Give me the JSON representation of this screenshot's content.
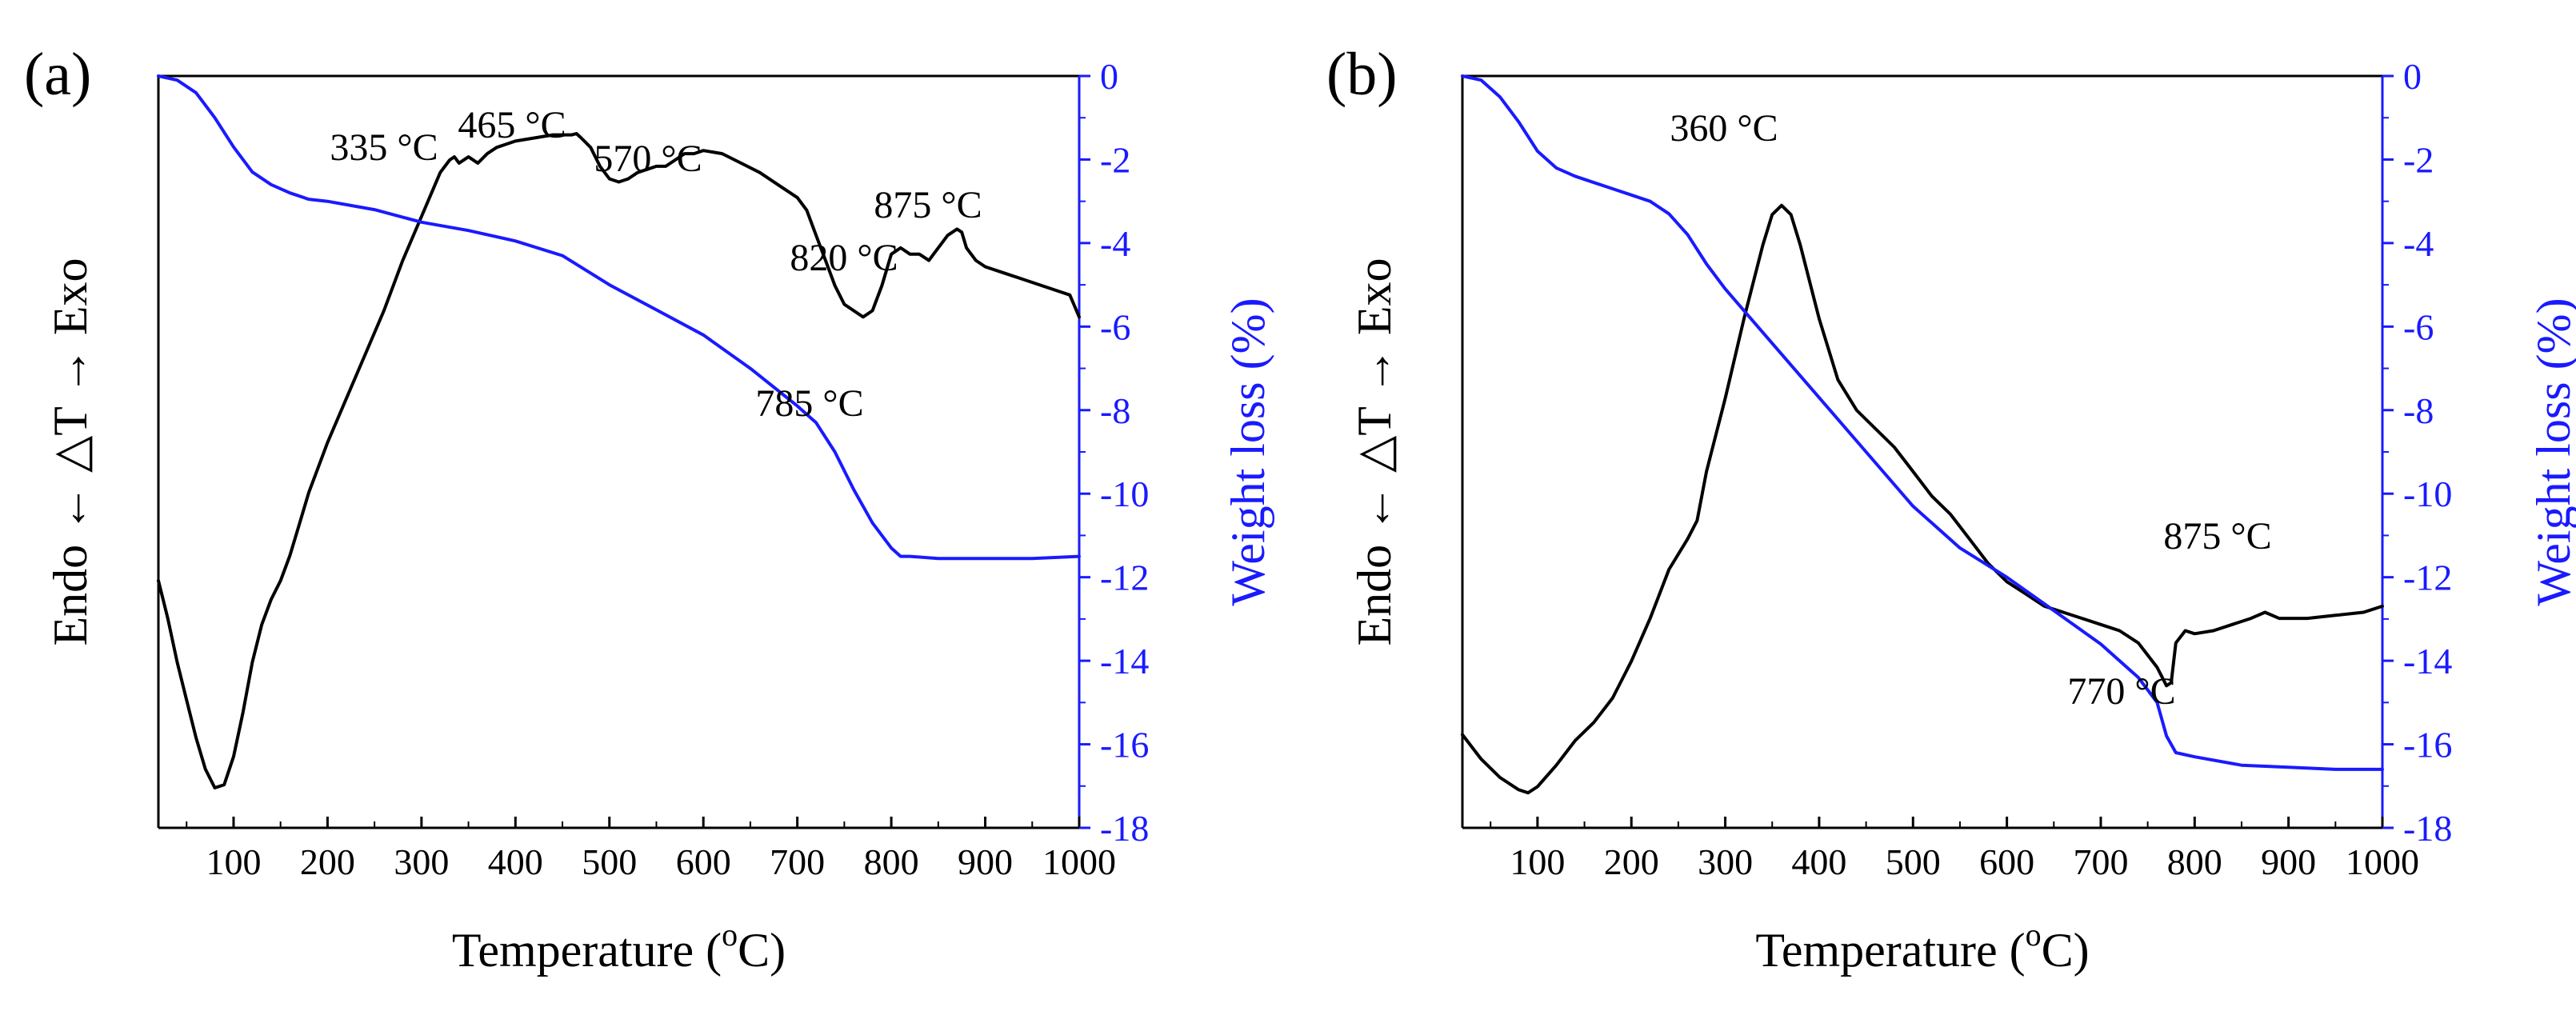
{
  "chart_data": [
    {
      "panel_label": "(a)",
      "type": "line",
      "xlabel": "Temperature (°C)",
      "xlabel_main": "Temperature (",
      "xlabel_sup": "o",
      "xlabel_end": "C)",
      "ylabel_left": "Endo ← △T → Exo",
      "ylabel_right": "Weight loss (%)",
      "xlim": [
        20,
        1000
      ],
      "x_ticks": [
        100,
        200,
        300,
        400,
        500,
        600,
        700,
        800,
        900,
        1000
      ],
      "right_ylim": [
        -18,
        0
      ],
      "right_y_ticks": [
        0,
        -2,
        -4,
        -6,
        -8,
        -10,
        -12,
        -14,
        -16,
        -18
      ],
      "left_ylim": [
        0,
        100
      ],
      "left_y_ticks_shown": false,
      "series": [
        {
          "axis": "left",
          "color": "#000000",
          "x": [
            20,
            30,
            40,
            50,
            60,
            70,
            80,
            90,
            100,
            110,
            120,
            130,
            140,
            150,
            160,
            170,
            180,
            190,
            200,
            220,
            240,
            260,
            280,
            300,
            320,
            330,
            335,
            340,
            350,
            360,
            370,
            380,
            400,
            420,
            440,
            460,
            465,
            470,
            480,
            490,
            500,
            510,
            520,
            530,
            540,
            550,
            560,
            570,
            580,
            590,
            600,
            620,
            640,
            660,
            680,
            700,
            710,
            720,
            730,
            740,
            750,
            760,
            770,
            780,
            790,
            800,
            810,
            820,
            830,
            840,
            850,
            860,
            870,
            875,
            880,
            890,
            900,
            920,
            940,
            960,
            980,
            990,
            1000
          ],
          "values": [
            33,
            27,
            20,
            14,
            8,
            3,
            0,
            0.5,
            5,
            12,
            20,
            26,
            30,
            33,
            37,
            42,
            47,
            51,
            55,
            62,
            69,
            76,
            84,
            91,
            98,
            100,
            100.5,
            99.5,
            100.5,
            99.5,
            101,
            102,
            103,
            103.5,
            104,
            104,
            104.2,
            103.5,
            102,
            99,
            97,
            96.5,
            97,
            98,
            98.5,
            99,
            99,
            100,
            101,
            101,
            101.5,
            101,
            99.5,
            98,
            96,
            94,
            92,
            88,
            84,
            80,
            77,
            76,
            75,
            76,
            80,
            85,
            86,
            85,
            85,
            84,
            86,
            88,
            89,
            88.5,
            86,
            84,
            83,
            82,
            81,
            80,
            79,
            78.5,
            75
          ]
        },
        {
          "axis": "right",
          "color": "#1a1aff",
          "x": [
            20,
            40,
            60,
            80,
            100,
            120,
            140,
            160,
            180,
            200,
            250,
            300,
            350,
            400,
            450,
            500,
            550,
            600,
            650,
            700,
            720,
            740,
            760,
            780,
            800,
            810,
            820,
            850,
            900,
            950,
            1000
          ],
          "values": [
            0,
            -0.1,
            -0.4,
            -1.0,
            -1.7,
            -2.3,
            -2.6,
            -2.8,
            -2.95,
            -3.0,
            -3.2,
            -3.5,
            -3.7,
            -3.95,
            -4.3,
            -5.0,
            -5.6,
            -6.2,
            -7.0,
            -7.9,
            -8.3,
            -9.0,
            -9.9,
            -10.7,
            -11.3,
            -11.5,
            -11.5,
            -11.55,
            -11.55,
            -11.55,
            -11.5
          ]
        }
      ],
      "annotations": [
        {
          "text": "335 °C",
          "x": 335
        },
        {
          "text": "465 °C",
          "x": 465
        },
        {
          "text": "570 °C",
          "x": 570
        },
        {
          "text": "820 °C",
          "x": 820
        },
        {
          "text": "875 °C",
          "x": 875
        },
        {
          "text": "785 °C",
          "x": 785
        }
      ]
    },
    {
      "panel_label": "(b)",
      "type": "line",
      "xlabel": "Temperature (°C)",
      "xlabel_main": "Temperature (",
      "xlabel_sup": "o",
      "xlabel_end": "C)",
      "ylabel_left": "Endo ← △T → Exo",
      "ylabel_right": "Weight loss (%)",
      "xlim": [
        20,
        1000
      ],
      "x_ticks": [
        100,
        200,
        300,
        400,
        500,
        600,
        700,
        800,
        900,
        1000
      ],
      "right_ylim": [
        -18,
        0
      ],
      "right_y_ticks": [
        0,
        -2,
        -4,
        -6,
        -8,
        -10,
        -12,
        -14,
        -16,
        -18
      ],
      "left_ylim": [
        0,
        100
      ],
      "left_y_ticks_shown": false,
      "series": [
        {
          "axis": "left",
          "color": "#000000",
          "x": [
            20,
            40,
            60,
            80,
            90,
            100,
            120,
            140,
            160,
            180,
            200,
            220,
            240,
            260,
            270,
            280,
            300,
            320,
            340,
            350,
            360,
            370,
            380,
            400,
            420,
            440,
            460,
            480,
            500,
            520,
            540,
            560,
            580,
            600,
            620,
            640,
            660,
            680,
            700,
            720,
            740,
            760,
            770,
            775,
            780,
            790,
            800,
            820,
            840,
            860,
            875,
            890,
            920,
            950,
            980,
            1000
          ],
          "values": [
            10,
            6,
            3,
            1,
            0.5,
            1.5,
            5,
            9,
            12,
            16,
            22,
            29,
            37,
            42,
            45,
            53,
            65,
            78,
            90,
            95,
            96.5,
            95,
            90,
            78,
            68,
            63,
            60,
            57,
            53,
            49,
            46,
            42,
            38,
            35,
            33,
            31,
            30,
            29,
            28,
            27,
            25,
            21,
            18,
            18.5,
            25,
            27,
            26.5,
            27,
            28,
            29,
            30,
            29,
            29,
            29.5,
            30,
            31
          ]
        },
        {
          "axis": "right",
          "color": "#1a1aff",
          "x": [
            20,
            40,
            60,
            80,
            100,
            120,
            140,
            160,
            180,
            200,
            220,
            240,
            260,
            280,
            300,
            350,
            400,
            450,
            500,
            550,
            600,
            650,
            700,
            720,
            740,
            760,
            770,
            780,
            800,
            850,
            900,
            950,
            1000
          ],
          "values": [
            0,
            -0.1,
            -0.5,
            -1.1,
            -1.8,
            -2.2,
            -2.4,
            -2.55,
            -2.7,
            -2.85,
            -3.0,
            -3.3,
            -3.8,
            -4.5,
            -5.1,
            -6.4,
            -7.7,
            -9.0,
            -10.3,
            -11.3,
            -12.0,
            -12.8,
            -13.6,
            -14.0,
            -14.4,
            -15.0,
            -15.8,
            -16.2,
            -16.3,
            -16.5,
            -16.55,
            -16.6,
            -16.6
          ]
        }
      ],
      "annotations": [
        {
          "text": "360 °C",
          "x": 360
        },
        {
          "text": "875 °C",
          "x": 875
        },
        {
          "text": "770 °C",
          "x": 770
        }
      ]
    }
  ]
}
